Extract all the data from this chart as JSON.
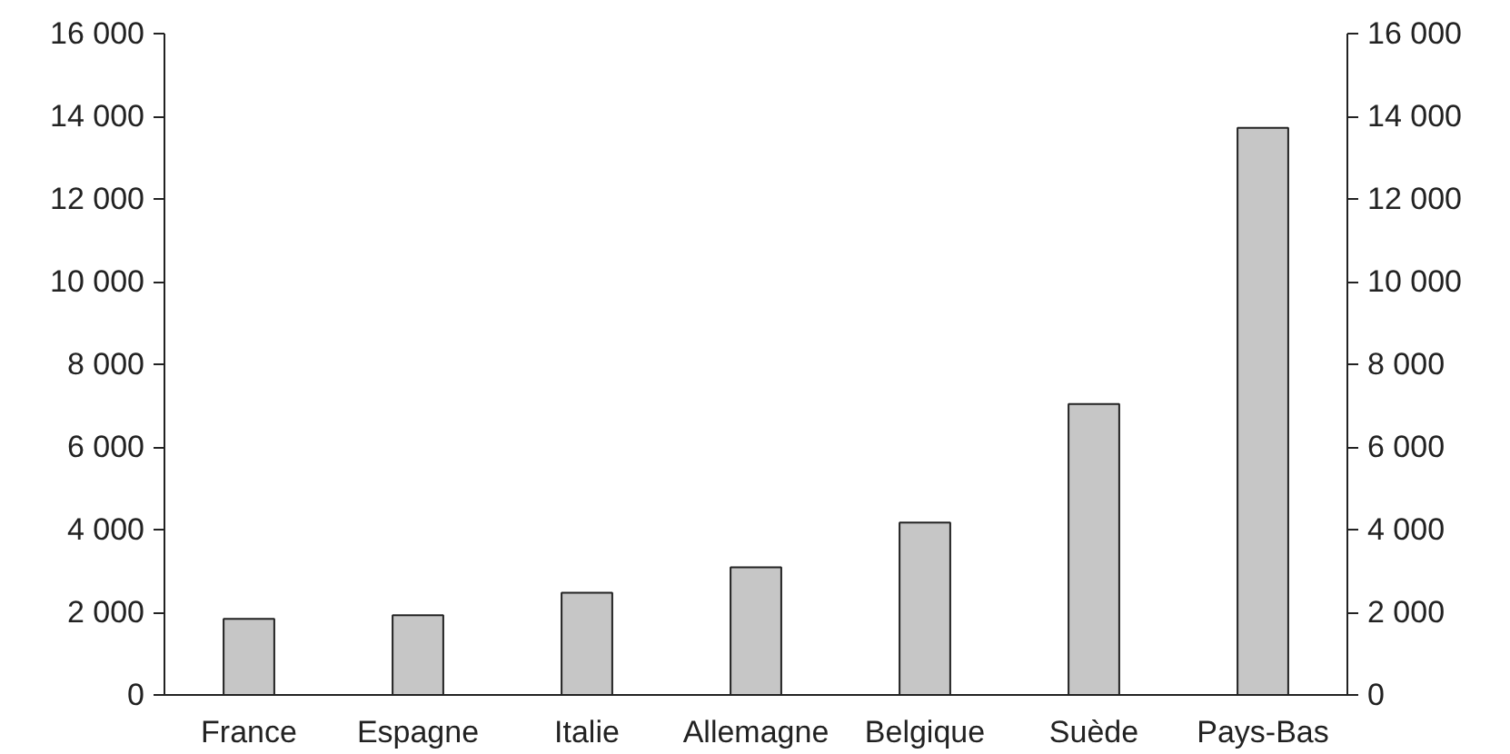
{
  "chart_data": {
    "type": "bar",
    "categories": [
      "France",
      "Espagne",
      "Italie",
      "Allemagne",
      "Belgique",
      "Suède",
      "Pays-Bas"
    ],
    "values": [
      1840,
      1930,
      2470,
      3090,
      4170,
      7040,
      13720
    ],
    "color": "#c6c6c6",
    "ylim": [
      0,
      16000
    ],
    "yticks": [
      0,
      {
        "value": 2000,
        "label": "2 000"
      },
      {
        "value": 4000,
        "label": "4 000"
      },
      {
        "value": 6000,
        "label": "6 000"
      },
      {
        "value": 8000,
        "label": "8 000"
      },
      {
        "value": 10000,
        "label": "10 000"
      },
      {
        "value": 12000,
        "label": "12 000"
      },
      {
        "value": 14000,
        "label": "14 000"
      },
      {
        "value": 16000,
        "label": "16 000"
      }
    ],
    "y2lim": [
      0,
      16000
    ],
    "y2ticks": [
      0,
      {
        "value": 2000,
        "label": "2 000"
      },
      {
        "value": 4000,
        "label": "4 000"
      },
      {
        "value": 6000,
        "label": "6 000"
      },
      {
        "value": 8000,
        "label": "8 000"
      },
      {
        "value": 10000,
        "label": "10 000"
      },
      {
        "value": 12000,
        "label": "12 000"
      },
      {
        "value": 14000,
        "label": "14 000"
      },
      {
        "value": 16000,
        "label": "16 000"
      }
    ],
    "grid": false
  }
}
